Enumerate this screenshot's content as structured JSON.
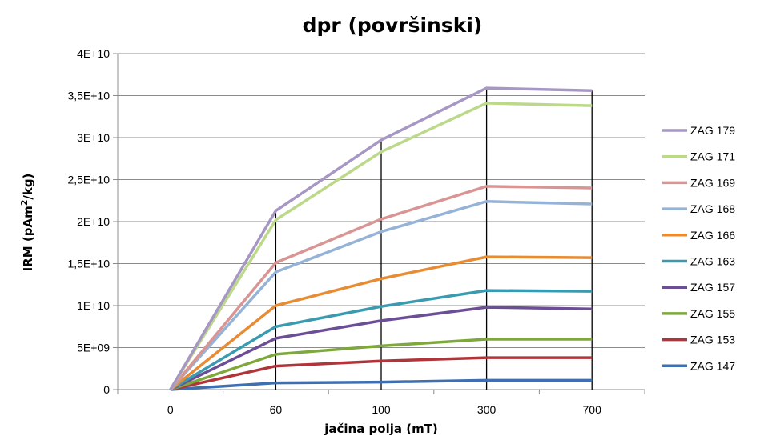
{
  "chart_data": {
    "type": "line",
    "title": "dpr (površinski)",
    "xlabel": "jačina polja (mT)",
    "ylabel": "IRM (pAm²/kg)",
    "ylabel_parts": {
      "before": "IRM (pAm",
      "sup": "2",
      "after": "/kg)"
    },
    "categories": [
      "0",
      "60",
      "100",
      "300",
      "700"
    ],
    "ylim": [
      0,
      40000000000
    ],
    "yticks": [
      0,
      5000000000,
      10000000000,
      15000000000,
      20000000000,
      25000000000,
      30000000000,
      35000000000,
      40000000000
    ],
    "ytick_labels": [
      "0",
      "5E+09",
      "1E+10",
      "1,5E+10",
      "2E+10",
      "2,5E+10",
      "3E+10",
      "3,5E+10",
      "4E+10"
    ],
    "grid": true,
    "legend_position": "right",
    "drop_lines": true,
    "series": [
      {
        "name": "ZAG 179",
        "color": "#a797c4",
        "values": [
          0,
          21300000000,
          29700000000,
          35900000000,
          35600000000
        ]
      },
      {
        "name": "ZAG 171",
        "color": "#bcd98a",
        "values": [
          0,
          20200000000,
          28300000000,
          34100000000,
          33800000000
        ]
      },
      {
        "name": "ZAG 169",
        "color": "#d99594",
        "values": [
          0,
          15100000000,
          20300000000,
          24200000000,
          24000000000
        ]
      },
      {
        "name": "ZAG 168",
        "color": "#95b3d7",
        "values": [
          0,
          14000000000,
          18800000000,
          22400000000,
          22100000000
        ]
      },
      {
        "name": "ZAG 166",
        "color": "#e88c34",
        "values": [
          0,
          10000000000,
          13200000000,
          15800000000,
          15700000000
        ]
      },
      {
        "name": "ZAG 163",
        "color": "#3a9bb0",
        "values": [
          0,
          7500000000,
          9900000000,
          11800000000,
          11700000000
        ]
      },
      {
        "name": "ZAG 157",
        "color": "#6c4e96",
        "values": [
          0,
          6100000000,
          8200000000,
          9800000000,
          9600000000
        ]
      },
      {
        "name": "ZAG 155",
        "color": "#7fa83c",
        "values": [
          0,
          4200000000,
          5200000000,
          6000000000,
          6000000000
        ]
      },
      {
        "name": "ZAG 153",
        "color": "#b0353a",
        "values": [
          0,
          2800000000,
          3400000000,
          3800000000,
          3800000000
        ]
      },
      {
        "name": "ZAG 147",
        "color": "#3e6fb0",
        "values": [
          0,
          800000000,
          900000000,
          1100000000,
          1100000000
        ]
      }
    ]
  }
}
